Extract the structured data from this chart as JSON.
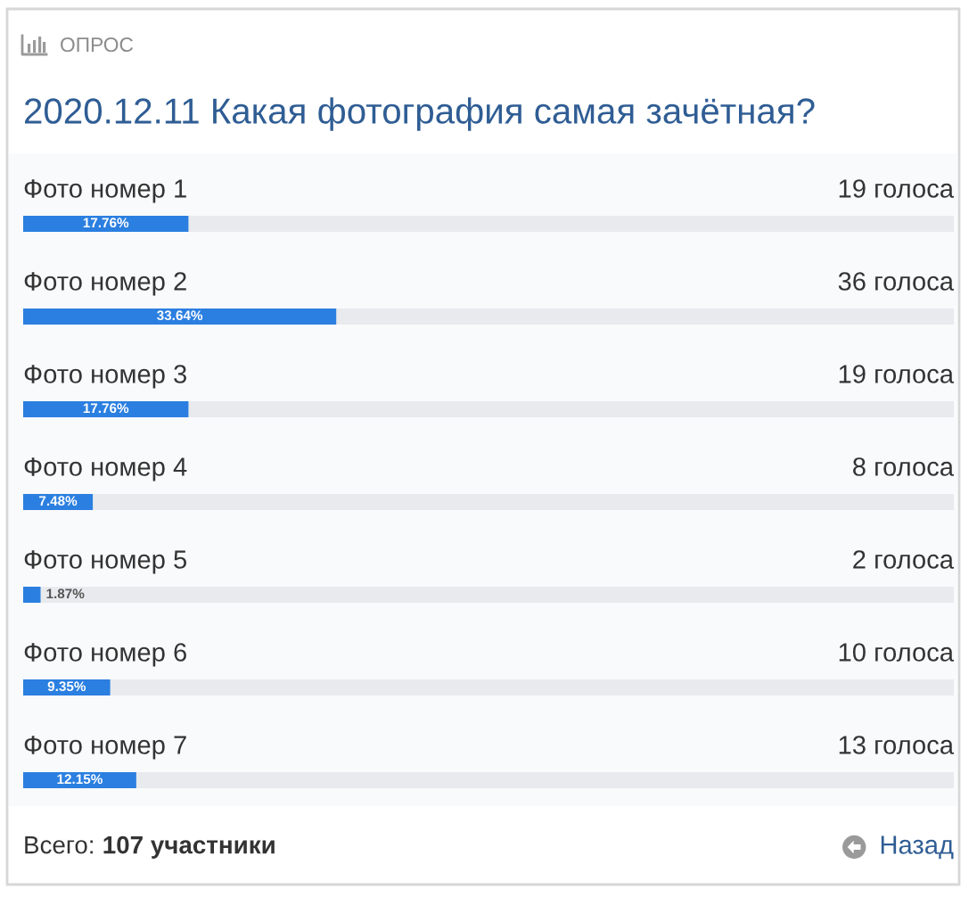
{
  "chart_data": {
    "type": "bar",
    "orientation": "horizontal",
    "title": "2020.12.11 Какая фотография самая зачётная?",
    "categories": [
      "Фото номер 1",
      "Фото номер 2",
      "Фото номер 3",
      "Фото номер 4",
      "Фото номер 5",
      "Фото номер 6",
      "Фото номер 7"
    ],
    "values": [
      17.76,
      33.64,
      17.76,
      7.48,
      1.87,
      9.35,
      12.15
    ],
    "value_labels": [
      "17.76%",
      "33.64%",
      "17.76%",
      "7.48%",
      "1.87%",
      "9.35%",
      "12.15%"
    ],
    "color": "#2b7fe0",
    "xlim": [
      0,
      100
    ],
    "tick_labels": "y",
    "annotations": [
      "ОПРОС",
      "19 голоса",
      "36 голоса",
      "19 голоса",
      "8 голоса",
      "2 голоса",
      "10 голоса",
      "13 голоса",
      "Всего:",
      "107 участники",
      "Назад"
    ]
  }
}
